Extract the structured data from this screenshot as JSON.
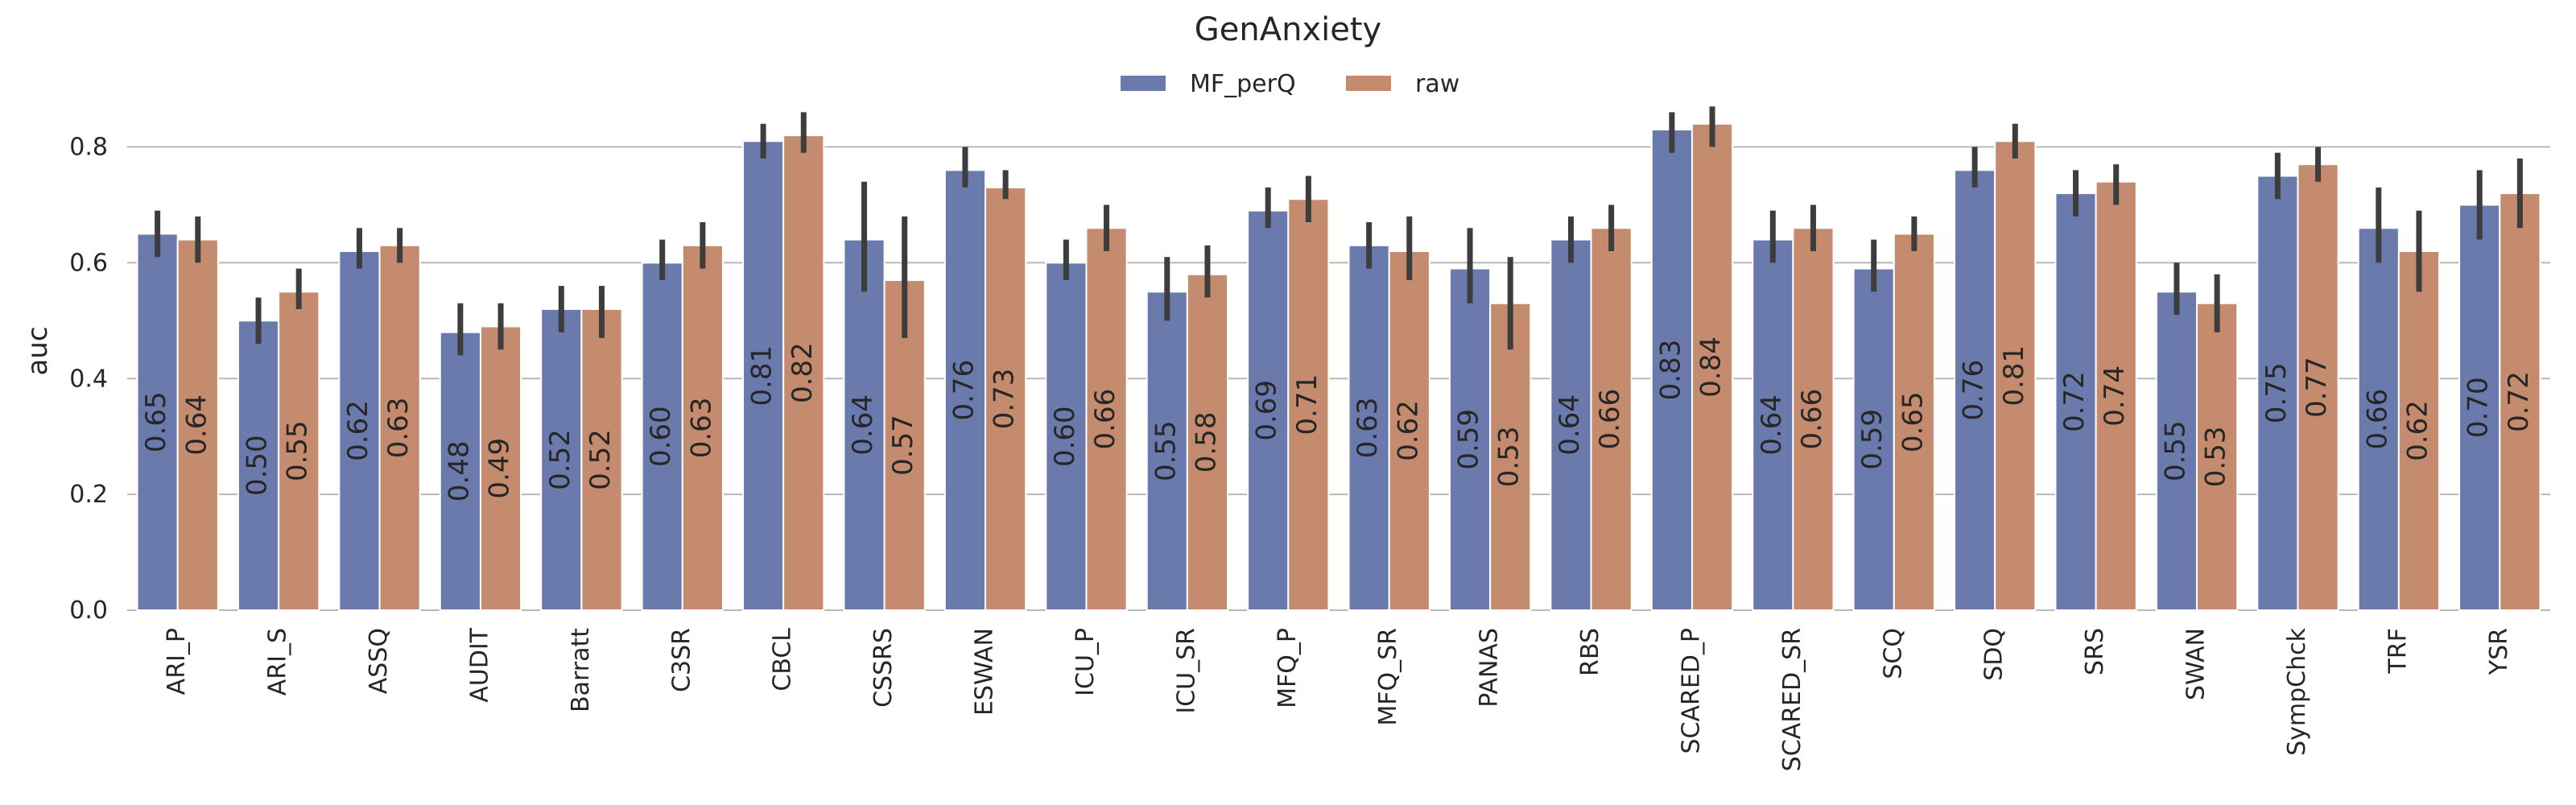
{
  "chart_data": {
    "type": "bar",
    "title": "GenAnxiety",
    "xlabel": "",
    "ylabel": "auc",
    "ylim": [
      0,
      0.88
    ],
    "yticks": [
      "0.0",
      "0.2",
      "0.4",
      "0.6",
      "0.8"
    ],
    "grid": "horizontal",
    "legend_position": "top-center",
    "categories": [
      "ARI_P",
      "ARI_S",
      "ASSQ",
      "AUDIT",
      "Barratt",
      "C3SR",
      "CBCL",
      "CSSRS",
      "ESWAN",
      "ICU_P",
      "ICU_SR",
      "MFQ_P",
      "MFQ_SR",
      "PANAS",
      "RBS",
      "SCARED_P",
      "SCARED_SR",
      "SCQ",
      "SDQ",
      "SRS",
      "SWAN",
      "SympChck",
      "TRF",
      "YSR"
    ],
    "series": [
      {
        "name": "MF_perQ",
        "color": "#6b7aac",
        "values": [
          0.65,
          0.5,
          0.62,
          0.48,
          0.52,
          0.6,
          0.81,
          0.64,
          0.76,
          0.6,
          0.55,
          0.69,
          0.63,
          0.59,
          0.64,
          0.83,
          0.64,
          0.59,
          0.76,
          0.72,
          0.55,
          0.75,
          0.66,
          0.7
        ],
        "labels": [
          "0.65",
          "0.50",
          "0.62",
          "0.48",
          "0.52",
          "0.60",
          "0.81",
          "0.64",
          "0.76",
          "0.60",
          "0.55",
          "0.69",
          "0.63",
          "0.59",
          "0.64",
          "0.83",
          "0.64",
          "0.59",
          "0.76",
          "0.72",
          "0.55",
          "0.75",
          "0.66",
          "0.70"
        ],
        "ci_low": [
          0.61,
          0.46,
          0.59,
          0.44,
          0.48,
          0.57,
          0.78,
          0.55,
          0.73,
          0.57,
          0.5,
          0.66,
          0.59,
          0.53,
          0.6,
          0.79,
          0.6,
          0.55,
          0.73,
          0.68,
          0.51,
          0.71,
          0.6,
          0.64
        ],
        "ci_high": [
          0.69,
          0.54,
          0.66,
          0.53,
          0.56,
          0.64,
          0.84,
          0.74,
          0.8,
          0.64,
          0.61,
          0.73,
          0.67,
          0.66,
          0.68,
          0.86,
          0.69,
          0.64,
          0.8,
          0.76,
          0.6,
          0.79,
          0.73,
          0.76
        ]
      },
      {
        "name": "raw",
        "color": "#c58b6e",
        "values": [
          0.64,
          0.55,
          0.63,
          0.49,
          0.52,
          0.63,
          0.82,
          0.57,
          0.73,
          0.66,
          0.58,
          0.71,
          0.62,
          0.53,
          0.66,
          0.84,
          0.66,
          0.65,
          0.81,
          0.74,
          0.53,
          0.77,
          0.62,
          0.72
        ],
        "labels": [
          "0.64",
          "0.55",
          "0.63",
          "0.49",
          "0.52",
          "0.63",
          "0.82",
          "0.57",
          "0.73",
          "0.66",
          "0.58",
          "0.71",
          "0.62",
          "0.53",
          "0.66",
          "0.84",
          "0.66",
          "0.65",
          "0.81",
          "0.74",
          "0.53",
          "0.77",
          "0.62",
          "0.72"
        ],
        "ci_low": [
          0.6,
          0.52,
          0.6,
          0.45,
          0.47,
          0.59,
          0.79,
          0.47,
          0.71,
          0.62,
          0.54,
          0.67,
          0.57,
          0.45,
          0.62,
          0.8,
          0.62,
          0.62,
          0.78,
          0.7,
          0.48,
          0.74,
          0.55,
          0.66
        ],
        "ci_high": [
          0.68,
          0.59,
          0.66,
          0.53,
          0.56,
          0.67,
          0.86,
          0.68,
          0.76,
          0.7,
          0.63,
          0.75,
          0.68,
          0.61,
          0.7,
          0.87,
          0.7,
          0.68,
          0.84,
          0.77,
          0.58,
          0.8,
          0.69,
          0.78
        ]
      }
    ]
  }
}
